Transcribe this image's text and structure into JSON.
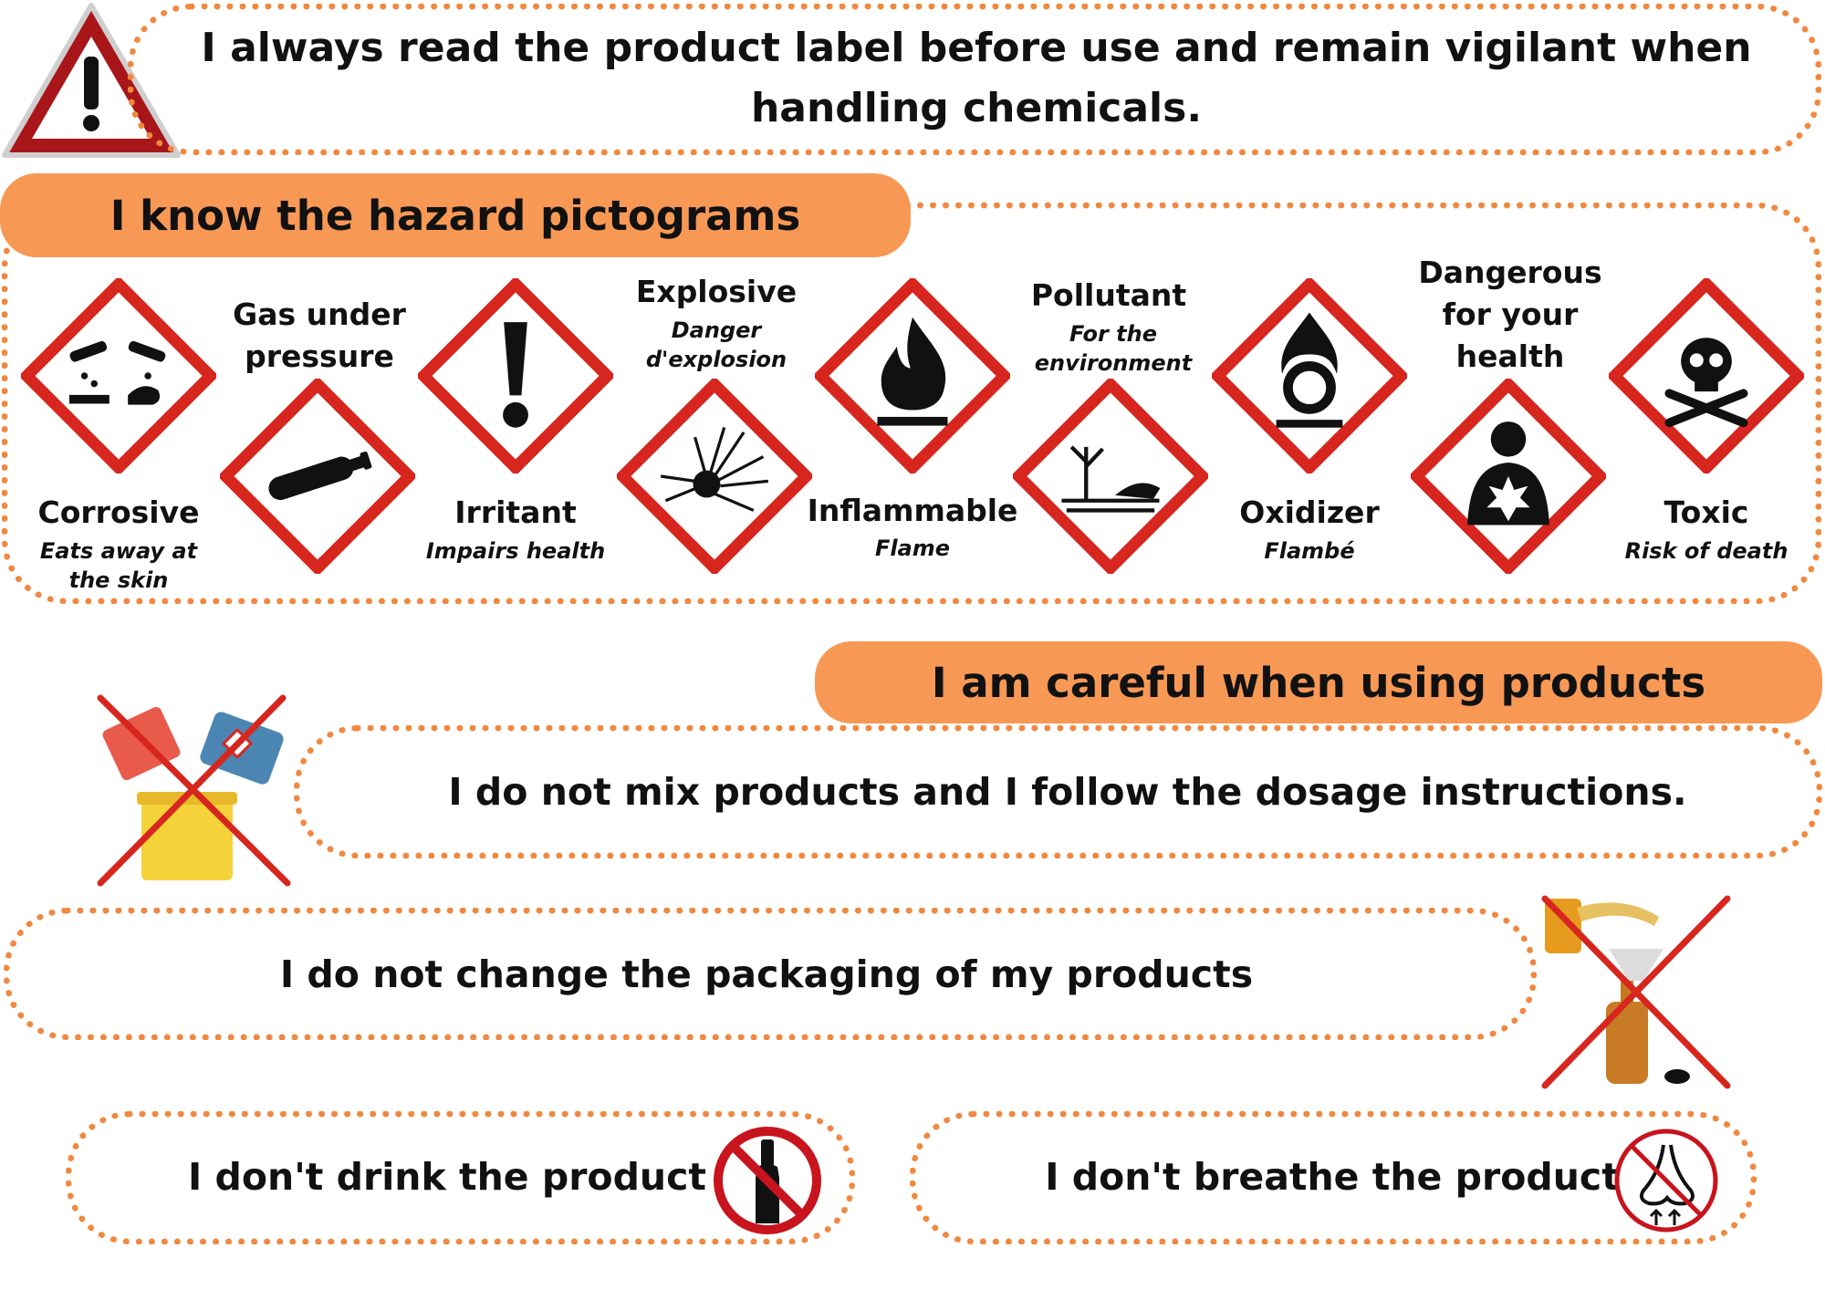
{
  "header": {
    "text": "I always read the product label before use and remain vigilant when handling chemicals."
  },
  "pictograms": {
    "title": "I know the hazard pictograms",
    "items": [
      {
        "name": "Corrosive",
        "desc": "Eats away at the skin",
        "icon": "corrosion-icon"
      },
      {
        "name": "Gas under pressure",
        "desc": "",
        "icon": "gas-cylinder-icon"
      },
      {
        "name": "Irritant",
        "desc": "Impairs health",
        "icon": "exclamation-icon"
      },
      {
        "name": "Explosive",
        "desc": "Danger d'explosion",
        "icon": "exploding-bomb-icon"
      },
      {
        "name": "Inflammable",
        "desc": "Flame",
        "icon": "flame-icon"
      },
      {
        "name": "Pollutant",
        "desc": "For the environment",
        "icon": "environment-icon"
      },
      {
        "name": "Oxidizer",
        "desc": "Flambé",
        "icon": "flame-over-circle-icon"
      },
      {
        "name": "Dangerous for your health",
        "desc": "",
        "icon": "health-hazard-icon"
      },
      {
        "name": "Toxic",
        "desc": "Risk of death",
        "icon": "skull-crossbones-icon"
      }
    ]
  },
  "careful": {
    "title": "I am careful when using products",
    "mix": "I do not mix products and I follow the dosage instructions.",
    "packaging": "I do not change the packaging of my products",
    "drink": "I don't drink the product",
    "breathe": "I don't breathe the product"
  },
  "colors": {
    "accent_orange": "#f79855",
    "dotted_border": "#f0883f",
    "hazard_red": "#d7261e",
    "warning_red": "#a31a1a"
  }
}
